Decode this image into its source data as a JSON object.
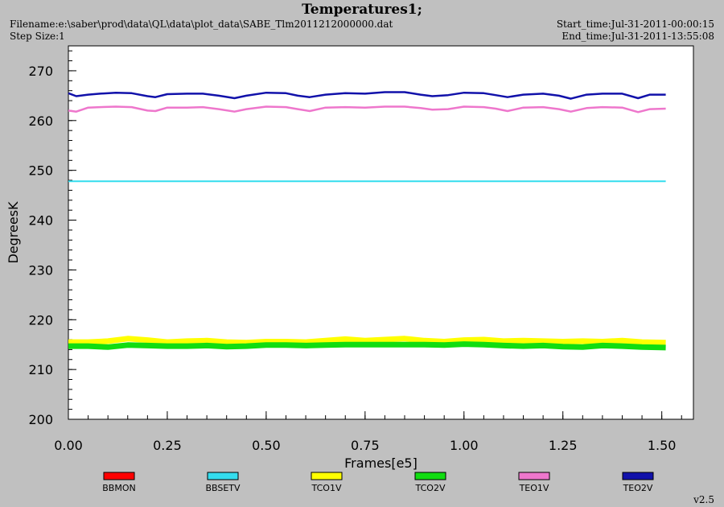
{
  "header": {
    "title": "Temperatures1;",
    "filename": "Filename:e:\\saber\\prod\\data\\QL\\data\\plot_data\\SABE_Tlm2011212000000.dat",
    "step_size": "Step Size:1",
    "start_time": "Start_time:Jul-31-2011-00:00:15",
    "end_time": "End_time:Jul-31-2011-13:55:08",
    "version": "v2.5"
  },
  "colors": {
    "BBMON": "#ff0000",
    "BBSETV": "#33ddee",
    "TCO1V": "#ffff00",
    "TCO2V": "#11dd11",
    "TEO1V": "#ee77cc",
    "TEO2V": "#1111aa"
  },
  "chart_data": {
    "type": "line",
    "title": "Temperatures1;",
    "xlabel": "Frames[e5]",
    "ylabel": "DegreesK",
    "xlim": [
      0,
      1.58
    ],
    "ylim": [
      200,
      275
    ],
    "xticks": [
      "0.00",
      "0.25",
      "0.50",
      "0.75",
      "1.00",
      "1.25",
      "1.50"
    ],
    "yticks": [
      "200",
      "210",
      "220",
      "230",
      "240",
      "250",
      "260",
      "270"
    ],
    "grid": false,
    "legend_position": "bottom",
    "series": [
      {
        "name": "BBMON",
        "x": [],
        "y": []
      },
      {
        "name": "BBSETV",
        "x": [
          0,
          0.25,
          0.5,
          0.75,
          1.0,
          1.25,
          1.51
        ],
        "y": [
          247.8,
          247.8,
          247.8,
          247.8,
          247.8,
          247.8,
          247.8
        ]
      },
      {
        "name": "TCO1V",
        "x": [
          0,
          0.05,
          0.1,
          0.15,
          0.2,
          0.25,
          0.3,
          0.35,
          0.4,
          0.45,
          0.5,
          0.55,
          0.6,
          0.65,
          0.7,
          0.75,
          0.8,
          0.85,
          0.9,
          0.95,
          1.0,
          1.05,
          1.1,
          1.15,
          1.2,
          1.25,
          1.3,
          1.35,
          1.4,
          1.45,
          1.51
        ],
        "y": [
          215.5,
          215.5,
          215.7,
          216.2,
          215.9,
          215.5,
          215.7,
          215.8,
          215.5,
          215.4,
          215.6,
          215.6,
          215.5,
          215.8,
          216.1,
          215.8,
          216.0,
          216.2,
          215.8,
          215.6,
          215.9,
          216.0,
          215.7,
          215.8,
          215.7,
          215.6,
          215.7,
          215.6,
          215.8,
          215.5,
          215.4
        ]
      },
      {
        "name": "TCO2V",
        "x": [
          0,
          0.05,
          0.1,
          0.15,
          0.2,
          0.25,
          0.3,
          0.35,
          0.4,
          0.45,
          0.5,
          0.55,
          0.6,
          0.65,
          0.7,
          0.75,
          0.8,
          0.85,
          0.9,
          0.95,
          1.0,
          1.05,
          1.1,
          1.15,
          1.2,
          1.25,
          1.3,
          1.35,
          1.4,
          1.45,
          1.51
        ],
        "y": [
          214.7,
          214.7,
          214.5,
          214.9,
          214.8,
          214.7,
          214.7,
          214.8,
          214.6,
          214.7,
          214.9,
          214.9,
          214.8,
          214.9,
          215.0,
          215.0,
          215.0,
          215.0,
          215.0,
          214.9,
          215.1,
          215.0,
          214.8,
          214.7,
          214.8,
          214.6,
          214.5,
          214.8,
          214.7,
          214.5,
          214.4
        ]
      },
      {
        "name": "TEO1V",
        "x": [
          0,
          0.02,
          0.05,
          0.08,
          0.12,
          0.16,
          0.2,
          0.22,
          0.25,
          0.3,
          0.34,
          0.38,
          0.42,
          0.45,
          0.5,
          0.55,
          0.58,
          0.61,
          0.65,
          0.7,
          0.75,
          0.8,
          0.85,
          0.89,
          0.92,
          0.96,
          1.0,
          1.05,
          1.08,
          1.11,
          1.15,
          1.2,
          1.24,
          1.27,
          1.31,
          1.35,
          1.4,
          1.44,
          1.47,
          1.51
        ],
        "y": [
          262.0,
          261.8,
          262.6,
          262.7,
          262.8,
          262.7,
          262.0,
          261.9,
          262.6,
          262.6,
          262.7,
          262.3,
          261.8,
          262.3,
          262.8,
          262.7,
          262.3,
          261.9,
          262.6,
          262.7,
          262.6,
          262.8,
          262.8,
          262.5,
          262.2,
          262.3,
          262.8,
          262.7,
          262.4,
          261.9,
          262.6,
          262.7,
          262.3,
          261.8,
          262.5,
          262.7,
          262.6,
          261.7,
          262.3,
          262.4
        ]
      },
      {
        "name": "TEO2V",
        "x": [
          0,
          0.02,
          0.05,
          0.08,
          0.12,
          0.16,
          0.2,
          0.22,
          0.25,
          0.3,
          0.34,
          0.38,
          0.42,
          0.45,
          0.5,
          0.55,
          0.58,
          0.61,
          0.65,
          0.7,
          0.75,
          0.8,
          0.85,
          0.89,
          0.92,
          0.96,
          1.0,
          1.05,
          1.08,
          1.11,
          1.15,
          1.2,
          1.24,
          1.27,
          1.31,
          1.35,
          1.4,
          1.44,
          1.47,
          1.51
        ],
        "y": [
          265.5,
          264.9,
          265.2,
          265.4,
          265.6,
          265.5,
          264.9,
          264.7,
          265.3,
          265.4,
          265.4,
          265.0,
          264.5,
          265.0,
          265.6,
          265.5,
          265.0,
          264.7,
          265.2,
          265.5,
          265.4,
          265.7,
          265.7,
          265.2,
          264.9,
          265.1,
          265.6,
          265.5,
          265.1,
          264.7,
          265.2,
          265.4,
          265.0,
          264.4,
          265.2,
          265.4,
          265.4,
          264.5,
          265.2,
          265.2
        ]
      }
    ]
  }
}
